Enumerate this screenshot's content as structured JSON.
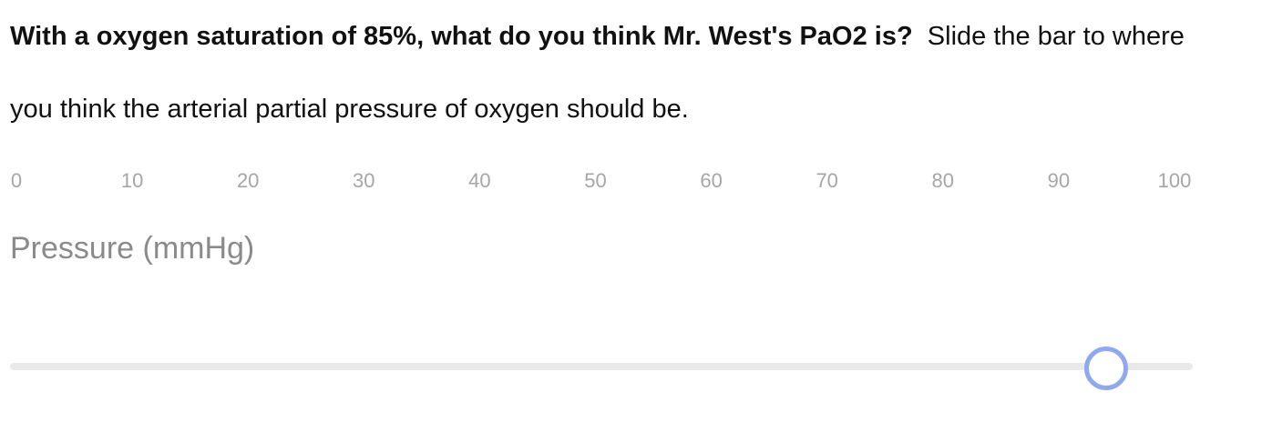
{
  "question": {
    "bold_text": "With a oxygen saturation of 85%, what do you think Mr. West's PaO2 is?",
    "instruction_text": "Slide the bar to where you think the arterial partial pressure of oxygen should be."
  },
  "scale": {
    "ticks": [
      "0",
      "10",
      "20",
      "30",
      "40",
      "50",
      "60",
      "70",
      "80",
      "90",
      "100"
    ],
    "min": 0,
    "max": 100
  },
  "slider": {
    "label": "Pressure (mmHg)",
    "value": 92,
    "thumb_color": "#8fa8ee",
    "track_color": "#e9e9e9"
  }
}
